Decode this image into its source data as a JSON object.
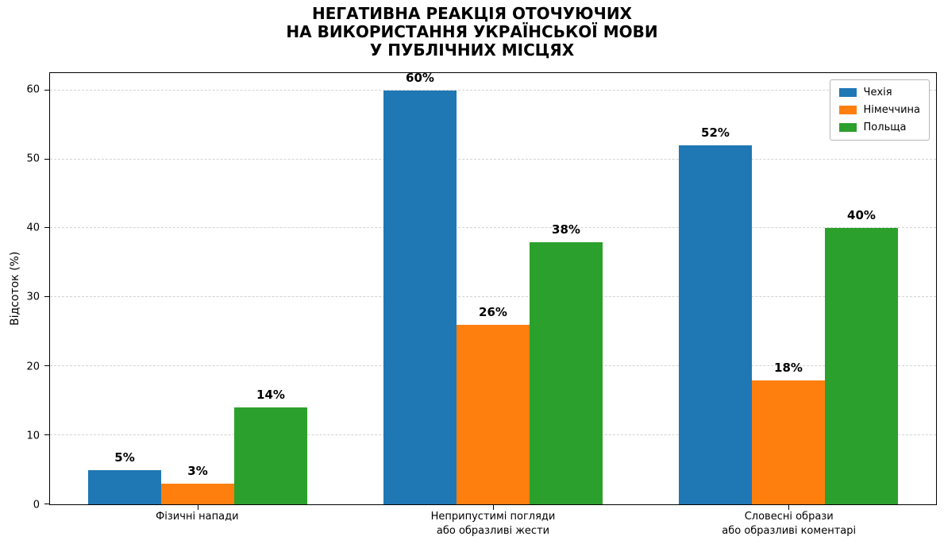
{
  "title": {
    "lines": [
      "НЕГАТИВНА РЕАКЦІЯ ОТОЧУЮЧИХ",
      "НА ВИКОРИСТАННЯ УКРАЇНСЬКОЇ МОВИ",
      "У ПУБЛІЧНИХ МІСЦЯХ"
    ]
  },
  "chart_data": {
    "type": "bar",
    "title": "НЕГАТИВНА РЕАКЦІЯ ОТОЧУЮЧИХ\nНА ВИКОРИСТАННЯ УКРАЇНСЬКОЇ МОВИ\nУ ПУБЛІЧНИХ МІСЦЯХ",
    "categories": [
      "Фізичні напади",
      "Неприпустимі погляди\nабо образливі жести",
      "Словесні образи\nабо образливі коментарі"
    ],
    "series": [
      {
        "name": "Чехія",
        "color": "#1f77b4",
        "values": [
          5,
          60,
          52
        ]
      },
      {
        "name": "Німеччина",
        "color": "#ff7f0e",
        "values": [
          3,
          26,
          18
        ]
      },
      {
        "name": "Польща",
        "color": "#2ca02c",
        "values": [
          14,
          38,
          40
        ]
      }
    ],
    "xlabel": "",
    "ylabel": "Відсоток (%)",
    "ylim": [
      0,
      62.5
    ],
    "yticks": [
      0,
      10,
      20,
      30,
      40,
      50,
      60
    ],
    "grid": true,
    "gridline_color": "#d3d3d3",
    "legend_position": "upper right",
    "value_label_format": "{v}%"
  }
}
